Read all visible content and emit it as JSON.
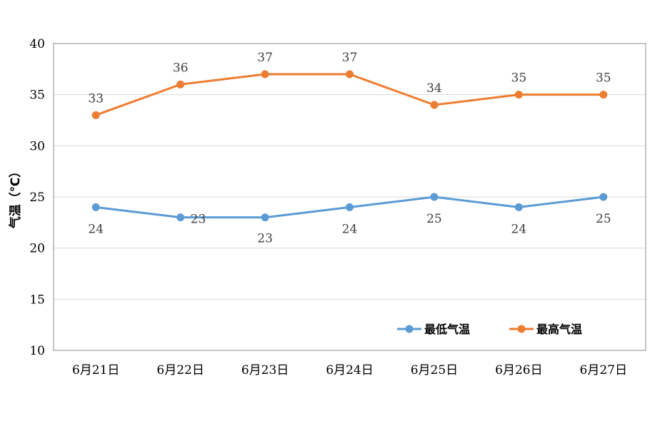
{
  "chart_data": {
    "type": "line",
    "categories": [
      "6月21日",
      "6月22日",
      "6月23日",
      "6月24日",
      "6月25日",
      "6月26日",
      "6月27日"
    ],
    "series": [
      {
        "name": "最低气温",
        "values": [
          24,
          23,
          23,
          24,
          25,
          24,
          25
        ],
        "color": "#5b9bd5"
      },
      {
        "name": "最高气温",
        "values": [
          33,
          36,
          37,
          37,
          34,
          35,
          35
        ],
        "color": "#ed7d31"
      }
    ],
    "title": "",
    "xlabel": "",
    "ylabel": "气温（℃）",
    "ylim": [
      10,
      40
    ],
    "yticks": [
      10,
      15,
      20,
      25,
      30,
      35,
      40
    ],
    "grid": true,
    "legend": "bottom-right inside plot",
    "data_labels": true
  }
}
